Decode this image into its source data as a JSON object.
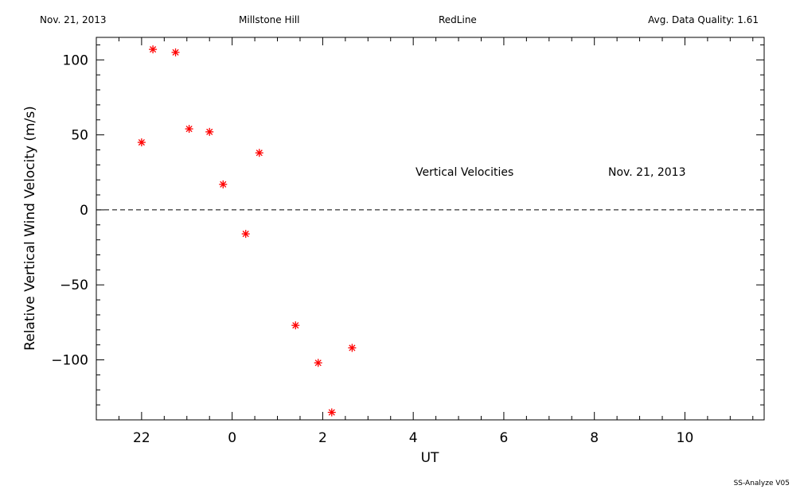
{
  "header": {
    "date": "Nov. 21, 2013",
    "site": "Millstone Hill",
    "line": "RedLine",
    "quality": "Avg. Data Quality: 1.61"
  },
  "footer": {
    "software": "SS-Analyze V05"
  },
  "chart_data": {
    "type": "scatter",
    "xlabel": "UT",
    "ylabel": "Relative Vertical Wind Velocity (m/s)",
    "annotation_left": "Vertical Velocities",
    "annotation_right": "Nov. 21, 2013",
    "xlim": [
      21.0,
      11.75
    ],
    "ylim": [
      -140,
      115
    ],
    "x_wrap_hours": 24,
    "x_ticks": [
      {
        "value": 22,
        "label": "22"
      },
      {
        "value": 0,
        "label": "0"
      },
      {
        "value": 2,
        "label": "2"
      },
      {
        "value": 4,
        "label": "4"
      },
      {
        "value": 6,
        "label": "6"
      },
      {
        "value": 8,
        "label": "8"
      },
      {
        "value": 10,
        "label": "10"
      }
    ],
    "y_ticks": [
      {
        "value": 100,
        "label": "100"
      },
      {
        "value": 50,
        "label": "50"
      },
      {
        "value": 0,
        "label": "0"
      },
      {
        "value": -50,
        "label": "−50"
      },
      {
        "value": -100,
        "label": "−100"
      }
    ],
    "zero_line": "dashed",
    "marker": "asterisk",
    "marker_color": "#ff0000",
    "points": [
      {
        "x": 22.0,
        "y": 45
      },
      {
        "x": 22.25,
        "y": 107
      },
      {
        "x": 22.75,
        "y": 105
      },
      {
        "x": 23.05,
        "y": 54
      },
      {
        "x": 23.5,
        "y": 52
      },
      {
        "x": 23.8,
        "y": 17
      },
      {
        "x": 0.3,
        "y": -16
      },
      {
        "x": 0.6,
        "y": 38
      },
      {
        "x": 1.4,
        "y": -77
      },
      {
        "x": 1.9,
        "y": -102
      },
      {
        "x": 2.2,
        "y": -135
      },
      {
        "x": 2.65,
        "y": -92
      }
    ]
  }
}
